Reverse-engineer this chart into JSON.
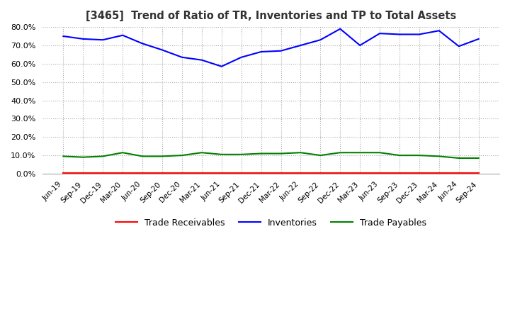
{
  "title": "[3465]  Trend of Ratio of TR, Inventories and TP to Total Assets",
  "x_labels": [
    "Jun-19",
    "Sep-19",
    "Dec-19",
    "Mar-20",
    "Jun-20",
    "Sep-20",
    "Dec-20",
    "Mar-21",
    "Jun-21",
    "Sep-21",
    "Dec-21",
    "Mar-22",
    "Jun-22",
    "Sep-22",
    "Dec-22",
    "Mar-23",
    "Jun-23",
    "Sep-23",
    "Dec-23",
    "Mar-24",
    "Jun-24",
    "Sep-24"
  ],
  "trade_receivables": [
    0.3,
    0.3,
    0.3,
    0.3,
    0.3,
    0.3,
    0.3,
    0.3,
    0.3,
    0.3,
    0.3,
    0.3,
    0.3,
    0.3,
    0.3,
    0.3,
    0.3,
    0.3,
    0.3,
    0.3,
    0.3,
    0.3
  ],
  "inventories": [
    75.0,
    73.5,
    73.0,
    75.5,
    71.0,
    67.5,
    63.5,
    62.0,
    58.5,
    63.5,
    66.5,
    67.0,
    70.0,
    73.0,
    79.0,
    70.0,
    76.5,
    76.0,
    76.0,
    78.0,
    69.5,
    73.5
  ],
  "trade_payables": [
    9.5,
    9.0,
    9.5,
    11.5,
    9.5,
    9.5,
    10.0,
    11.5,
    10.5,
    10.5,
    11.0,
    11.0,
    11.5,
    10.0,
    11.5,
    11.5,
    11.5,
    10.0,
    10.0,
    9.5,
    8.5,
    8.5
  ],
  "tr_color": "#ff0000",
  "inv_color": "#0000ff",
  "tp_color": "#008000",
  "ylim": [
    0,
    80
  ],
  "yticks": [
    0,
    10,
    20,
    30,
    40,
    50,
    60,
    70,
    80
  ],
  "grid_color": "#aaaaaa",
  "background_color": "#ffffff",
  "legend_labels": [
    "Trade Receivables",
    "Inventories",
    "Trade Payables"
  ]
}
